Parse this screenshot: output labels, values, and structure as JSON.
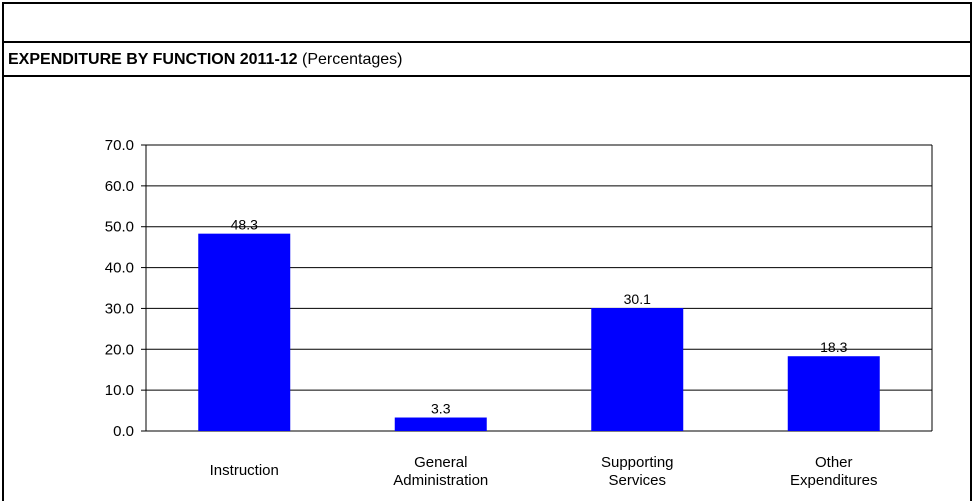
{
  "title": {
    "bold_text": "EXPENDITURE BY FUNCTION 2011-12",
    "normal_text": "(Percentages)"
  },
  "colors": {
    "bar": "#0000ff",
    "grid": "#000000",
    "text": "#000000"
  },
  "chart_data": {
    "type": "bar",
    "title": "EXPENDITURE BY FUNCTION 2011-12 (Percentages)",
    "categories": [
      [
        "Instruction"
      ],
      [
        "General",
        "Administration"
      ],
      [
        "Supporting",
        "Services"
      ],
      [
        "Other",
        "Expenditures"
      ]
    ],
    "values": [
      48.3,
      3.3,
      30.1,
      18.3
    ],
    "value_labels": [
      "48.3",
      "3.3",
      "30.1",
      "18.3"
    ],
    "ylim": [
      0,
      70
    ],
    "yticks": [
      "0.0",
      "10.0",
      "20.0",
      "30.0",
      "40.0",
      "50.0",
      "60.0",
      "70.0"
    ],
    "grid": true,
    "xlabel": "",
    "ylabel": ""
  }
}
